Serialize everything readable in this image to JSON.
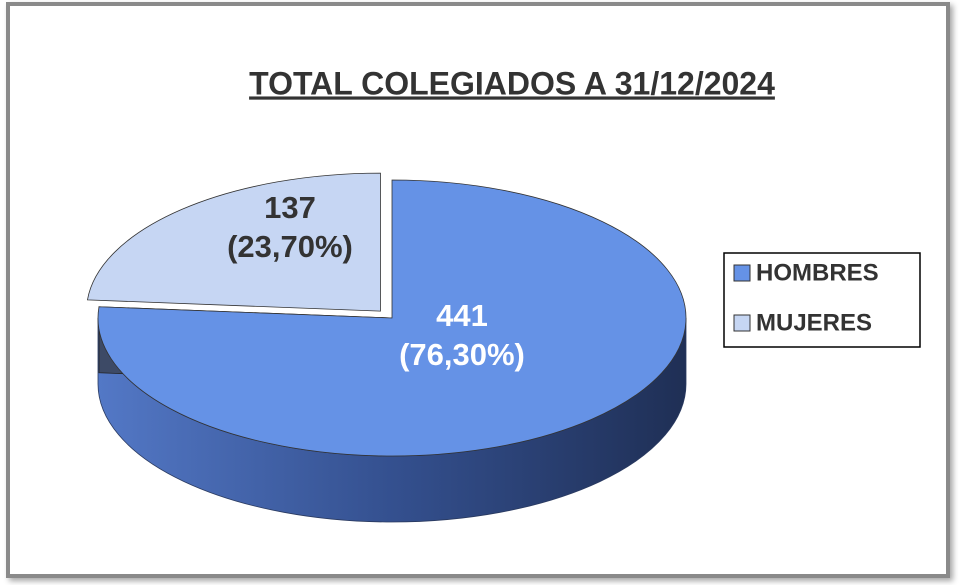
{
  "chart_data": {
    "type": "pie3d",
    "title": "TOTAL COLEGIADOS A 31/12/2024",
    "categories": [
      "HOMBRES",
      "MUJERES"
    ],
    "values": [
      441,
      137
    ],
    "percentages": [
      76.3,
      23.7
    ],
    "percentage_labels": [
      "(76,30%)",
      "(23,70%)"
    ],
    "colors": [
      "#6592e6",
      "#c6d6f3"
    ],
    "legend": "right"
  }
}
